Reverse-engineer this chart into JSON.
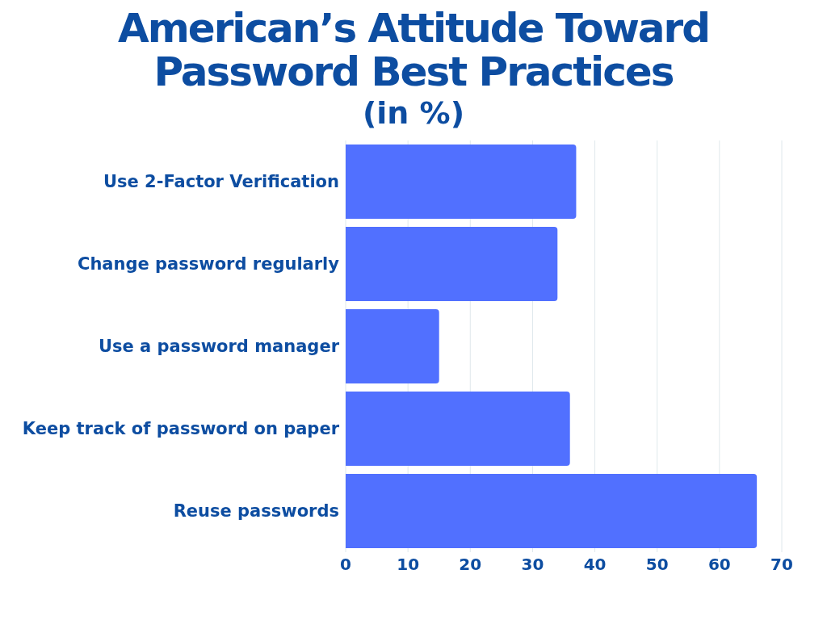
{
  "chart_data": {
    "type": "bar",
    "orientation": "horizontal",
    "title": "American’s Attitude Toward Password Best Practices",
    "subtitle": "(in %)",
    "categories": [
      "Use 2-Factor Verification",
      "Change password regularly",
      "Use a password manager",
      "Keep track of password on paper",
      "Reuse passwords"
    ],
    "values": [
      37,
      34,
      15,
      36,
      66
    ],
    "color": "#5170ff",
    "xlim": [
      0,
      70
    ],
    "xticks": [
      0,
      10,
      20,
      30,
      40,
      50,
      60,
      70
    ],
    "grid": "x"
  }
}
